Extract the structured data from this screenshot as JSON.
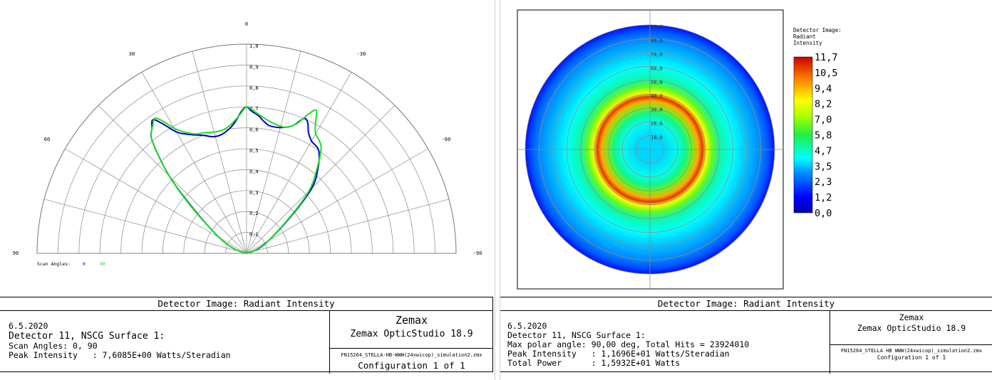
{
  "left": {
    "chart_data": {
      "type": "line",
      "polar": true,
      "radial_ticks": [
        "0,1",
        "0,2",
        "0,3",
        "0,4",
        "0,5",
        "0,6",
        "0,7",
        "0,8",
        "0,9",
        "1,0"
      ],
      "angle_labels": {
        "top": "0",
        "right": "-90",
        "left": "90",
        "upper_left": "30",
        "upper_right": "-30",
        "mid_left": "60",
        "mid_right": "-60"
      },
      "rlim": [
        0,
        1.0
      ],
      "legend_label": "Scan Angles:",
      "series": [
        {
          "name": "0",
          "color": "#0000cc",
          "points": [
            [
              -90,
              0
            ],
            [
              -70,
              0.05
            ],
            [
              -60,
              0.12
            ],
            [
              -50,
              0.28
            ],
            [
              -45,
              0.44
            ],
            [
              -40,
              0.53
            ],
            [
              -35,
              0.6
            ],
            [
              -30,
              0.62
            ],
            [
              -27,
              0.65
            ],
            [
              -25,
              0.69
            ],
            [
              -23,
              0.7
            ],
            [
              -20,
              0.65
            ],
            [
              -17,
              0.63
            ],
            [
              -14,
              0.62
            ],
            [
              -10,
              0.62
            ],
            [
              -7,
              0.64
            ],
            [
              -5,
              0.66
            ],
            [
              -2,
              0.68
            ],
            [
              0,
              0.7
            ],
            [
              2,
              0.68
            ],
            [
              5,
              0.63
            ],
            [
              8,
              0.6
            ],
            [
              12,
              0.58
            ],
            [
              16,
              0.58
            ],
            [
              20,
              0.6
            ],
            [
              24,
              0.62
            ],
            [
              27,
              0.64
            ],
            [
              30,
              0.67
            ],
            [
              33,
              0.74
            ],
            [
              35,
              0.78
            ],
            [
              37,
              0.75
            ],
            [
              40,
              0.7
            ],
            [
              45,
              0.52
            ],
            [
              50,
              0.33
            ],
            [
              60,
              0.15
            ],
            [
              70,
              0.06
            ],
            [
              90,
              0
            ]
          ]
        },
        {
          "name": "90",
          "color": "#22dd22",
          "points": [
            [
              -90,
              0
            ],
            [
              -70,
              0.06
            ],
            [
              -60,
              0.12
            ],
            [
              -50,
              0.27
            ],
            [
              -45,
              0.42
            ],
            [
              -40,
              0.52
            ],
            [
              -35,
              0.62
            ],
            [
              -30,
              0.66
            ],
            [
              -28,
              0.7
            ],
            [
              -26,
              0.76
            ],
            [
              -24,
              0.73
            ],
            [
              -22,
              0.68
            ],
            [
              -20,
              0.65
            ],
            [
              -17,
              0.63
            ],
            [
              -14,
              0.63
            ],
            [
              -10,
              0.64
            ],
            [
              -6,
              0.66
            ],
            [
              -3,
              0.68
            ],
            [
              0,
              0.7
            ],
            [
              3,
              0.66
            ],
            [
              7,
              0.62
            ],
            [
              11,
              0.6
            ],
            [
              15,
              0.6
            ],
            [
              19,
              0.61
            ],
            [
              23,
              0.62
            ],
            [
              27,
              0.65
            ],
            [
              30,
              0.69
            ],
            [
              32,
              0.74
            ],
            [
              34,
              0.78
            ],
            [
              36,
              0.76
            ],
            [
              40,
              0.7
            ],
            [
              45,
              0.52
            ],
            [
              50,
              0.34
            ],
            [
              60,
              0.15
            ],
            [
              70,
              0.06
            ],
            [
              90,
              0
            ]
          ]
        }
      ]
    },
    "footer": {
      "title": "Detector Image: Radiant Intensity",
      "date": "6.5.2020",
      "detector": "Detector 11, NSCG Surface 1:",
      "line2": "Scan Angles: 0, 90",
      "line3": "Peak Intensity   : 7,6085E+00 Watts/Steradian",
      "brand": "Zemax",
      "product": "Zemax OpticStudio 18.9",
      "file": "FN15264_STELLA-HB-WWW(24xwicop)_simulation2.zmx",
      "config": "Configuration 1 of 1"
    }
  },
  "right": {
    "chart_data": {
      "type": "heatmap",
      "title": "Detector Image: Radiant Intensity",
      "ring_labels": [
        "10,0",
        "20,0",
        "30,0",
        "40,0",
        "50,0",
        "60,0",
        "70,0",
        "80,0",
        "90,0"
      ],
      "colorbar_ticks": [
        "11,7",
        "10,5",
        "9,4",
        "8,2",
        "7,0",
        "5,8",
        "4,7",
        "3,5",
        "2,3",
        "1,2",
        "0,0"
      ],
      "colorbar_range": [
        0,
        11.7
      ],
      "radial_profile": {
        "polar_angle_deg": [
          0,
          10,
          20,
          26,
          30,
          35,
          38,
          40,
          41,
          45,
          50,
          60,
          70,
          80,
          85,
          90
        ],
        "intensity": [
          3.7,
          3.7,
          4.3,
          5.2,
          6.5,
          9.5,
          11.0,
          9.0,
          8.2,
          6.6,
          5.0,
          4.1,
          3.5,
          2.9,
          2.3,
          1.4
        ]
      },
      "max_value": 11.7
    },
    "footer": {
      "title": "Detector Image: Radiant Intensity",
      "date": "6.5.2020",
      "detector": "Detector 11, NSCG Surface 1:",
      "line2": "Max polar angle: 90,00 deg, Total Hits = 23924010",
      "line3": "Peak Intensity   : 1,1696E+01 Watts/Steradian",
      "line4": "Total Power      : 1,5932E+01 Watts",
      "brand": "Zemax",
      "product": "Zemax OpticStudio 18.9",
      "file": "FN15264_STELLA HB WWW(24xwicop)_simulation2.zmx",
      "config": "Configuration 1 of 1"
    }
  }
}
